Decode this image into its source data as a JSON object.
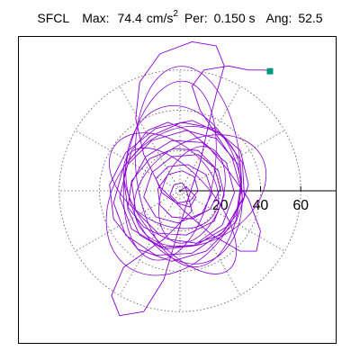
{
  "header": {
    "station": "SFCL",
    "max_label": "Max:",
    "max_value": "74.4",
    "max_unit_base": "cm/s",
    "max_unit_exp": "2",
    "per_label": "Per:",
    "per_value": "0.150 s",
    "ang_label": "Ang:",
    "ang_value": "52.5"
  },
  "chart_data": {
    "type": "scatter",
    "title": "",
    "xlabel": "",
    "ylabel": "",
    "radial_ticks": [
      20,
      40,
      60
    ],
    "radial_tick_labels": [
      "20",
      "40",
      "60"
    ],
    "circles": [
      20,
      40,
      60
    ],
    "spoke_angles_deg": [
      0,
      30,
      60,
      90,
      120,
      150,
      180,
      210,
      240,
      270,
      300,
      330
    ],
    "grid": true,
    "trace_color": "#8a00d4",
    "marker_color": "#00997a",
    "end_marker": {
      "x": 44.7,
      "y": 59.4
    },
    "orbit_loops": [
      {
        "cx": 2,
        "cy": 3,
        "rx": 28,
        "ry": 40,
        "rot": 15
      },
      {
        "cx": -5,
        "cy": 10,
        "rx": 22,
        "ry": 45,
        "rot": -10
      },
      {
        "cx": 10,
        "cy": 0,
        "rx": 35,
        "ry": 25,
        "rot": 30
      },
      {
        "cx": 0,
        "cy": -10,
        "rx": 18,
        "ry": 38,
        "rot": 40
      },
      {
        "cx": -8,
        "cy": 5,
        "rx": 30,
        "ry": 20,
        "rot": -35
      },
      {
        "cx": 4,
        "cy": 12,
        "rx": 26,
        "ry": 50,
        "rot": 5
      },
      {
        "cx": -3,
        "cy": -5,
        "rx": 40,
        "ry": 30,
        "rot": 55
      },
      {
        "cx": 6,
        "cy": -2,
        "rx": 15,
        "ry": 25,
        "rot": -20
      }
    ],
    "trace": [
      [
        0,
        0
      ],
      [
        3,
        2
      ],
      [
        8,
        -3
      ],
      [
        5,
        -8
      ],
      [
        -2,
        -6
      ],
      [
        -9,
        -1
      ],
      [
        -12,
        6
      ],
      [
        -6,
        12
      ],
      [
        4,
        13
      ],
      [
        13,
        8
      ],
      [
        16,
        -1
      ],
      [
        11,
        -11
      ],
      [
        -1,
        -16
      ],
      [
        -12,
        -13
      ],
      [
        -18,
        -3
      ],
      [
        -14,
        9
      ],
      [
        -4,
        17
      ],
      [
        9,
        18
      ],
      [
        19,
        10
      ],
      [
        22,
        -2
      ],
      [
        17,
        -15
      ],
      [
        3,
        -22
      ],
      [
        -11,
        -21
      ],
      [
        -22,
        -10
      ],
      [
        -24,
        4
      ],
      [
        -17,
        17
      ],
      [
        -4,
        25
      ],
      [
        11,
        24
      ],
      [
        23,
        14
      ],
      [
        27,
        -1
      ],
      [
        21,
        -17
      ],
      [
        7,
        -27
      ],
      [
        -9,
        -28
      ],
      [
        -24,
        -19
      ],
      [
        -30,
        -3
      ],
      [
        -26,
        13
      ],
      [
        -14,
        25
      ],
      [
        3,
        30
      ],
      [
        18,
        26
      ],
      [
        29,
        13
      ],
      [
        31,
        -4
      ],
      [
        22,
        -20
      ],
      [
        6,
        -31
      ],
      [
        -12,
        -32
      ],
      [
        -27,
        -22
      ],
      [
        -33,
        -6
      ],
      [
        -28,
        12
      ],
      [
        -15,
        27
      ],
      [
        1,
        34
      ],
      [
        17,
        31
      ],
      [
        30,
        20
      ],
      [
        34,
        3
      ],
      [
        28,
        -15
      ],
      [
        13,
        -30
      ],
      [
        -4,
        -35
      ],
      [
        -21,
        -29
      ],
      [
        -33,
        -14
      ],
      [
        -35,
        3
      ],
      [
        -27,
        19
      ],
      [
        -12,
        31
      ],
      [
        6,
        35
      ],
      [
        21,
        28
      ],
      [
        31,
        14
      ],
      [
        32,
        -3
      ],
      [
        23,
        -18
      ],
      [
        8,
        -27
      ],
      [
        -8,
        -29
      ],
      [
        -20,
        -22
      ],
      [
        -26,
        -9
      ],
      [
        -24,
        5
      ],
      [
        -15,
        16
      ],
      [
        -3,
        21
      ],
      [
        9,
        20
      ],
      [
        17,
        12
      ],
      [
        20,
        1
      ],
      [
        15,
        -9
      ],
      [
        6,
        -14
      ],
      [
        -4,
        -13
      ],
      [
        -10,
        -7
      ],
      [
        -11,
        1
      ],
      [
        -6,
        8
      ],
      [
        1,
        10
      ],
      [
        7,
        7
      ],
      [
        9,
        0
      ],
      [
        5,
        -5
      ],
      [
        -1,
        -6
      ],
      [
        -5,
        -2
      ],
      [
        -3,
        3
      ],
      [
        1,
        4
      ],
      [
        3,
        1
      ],
      [
        6,
        -10
      ],
      [
        -8,
        -24
      ],
      [
        -28,
        -38
      ],
      [
        -34,
        -52
      ],
      [
        -30,
        -62
      ],
      [
        -18,
        -60
      ],
      [
        -8,
        -44
      ],
      [
        -2,
        -24
      ],
      [
        4,
        -4
      ],
      [
        10,
        14
      ],
      [
        14,
        32
      ],
      [
        18,
        48
      ],
      [
        22,
        62
      ],
      [
        18,
        72
      ],
      [
        6,
        74
      ],
      [
        -10,
        68
      ],
      [
        -20,
        54
      ],
      [
        -22,
        36
      ],
      [
        -18,
        18
      ],
      [
        -10,
        2
      ],
      [
        2,
        -10
      ],
      [
        16,
        -22
      ],
      [
        30,
        -30
      ],
      [
        38,
        -30
      ],
      [
        40,
        -20
      ],
      [
        34,
        -4
      ],
      [
        24,
        10
      ],
      [
        14,
        22
      ],
      [
        4,
        30
      ],
      [
        -6,
        34
      ],
      [
        -16,
        30
      ],
      [
        -24,
        20
      ],
      [
        -28,
        6
      ],
      [
        -26,
        -8
      ],
      [
        -18,
        -18
      ],
      [
        -6,
        -24
      ],
      [
        8,
        -26
      ],
      [
        20,
        -22
      ],
      [
        28,
        -12
      ],
      [
        30,
        2
      ],
      [
        26,
        16
      ],
      [
        18,
        28
      ],
      [
        10,
        40
      ],
      [
        6,
        52
      ],
      [
        12,
        60
      ],
      [
        24,
        62
      ],
      [
        34,
        60
      ],
      [
        42,
        60
      ],
      [
        44.7,
        59.4
      ]
    ]
  }
}
